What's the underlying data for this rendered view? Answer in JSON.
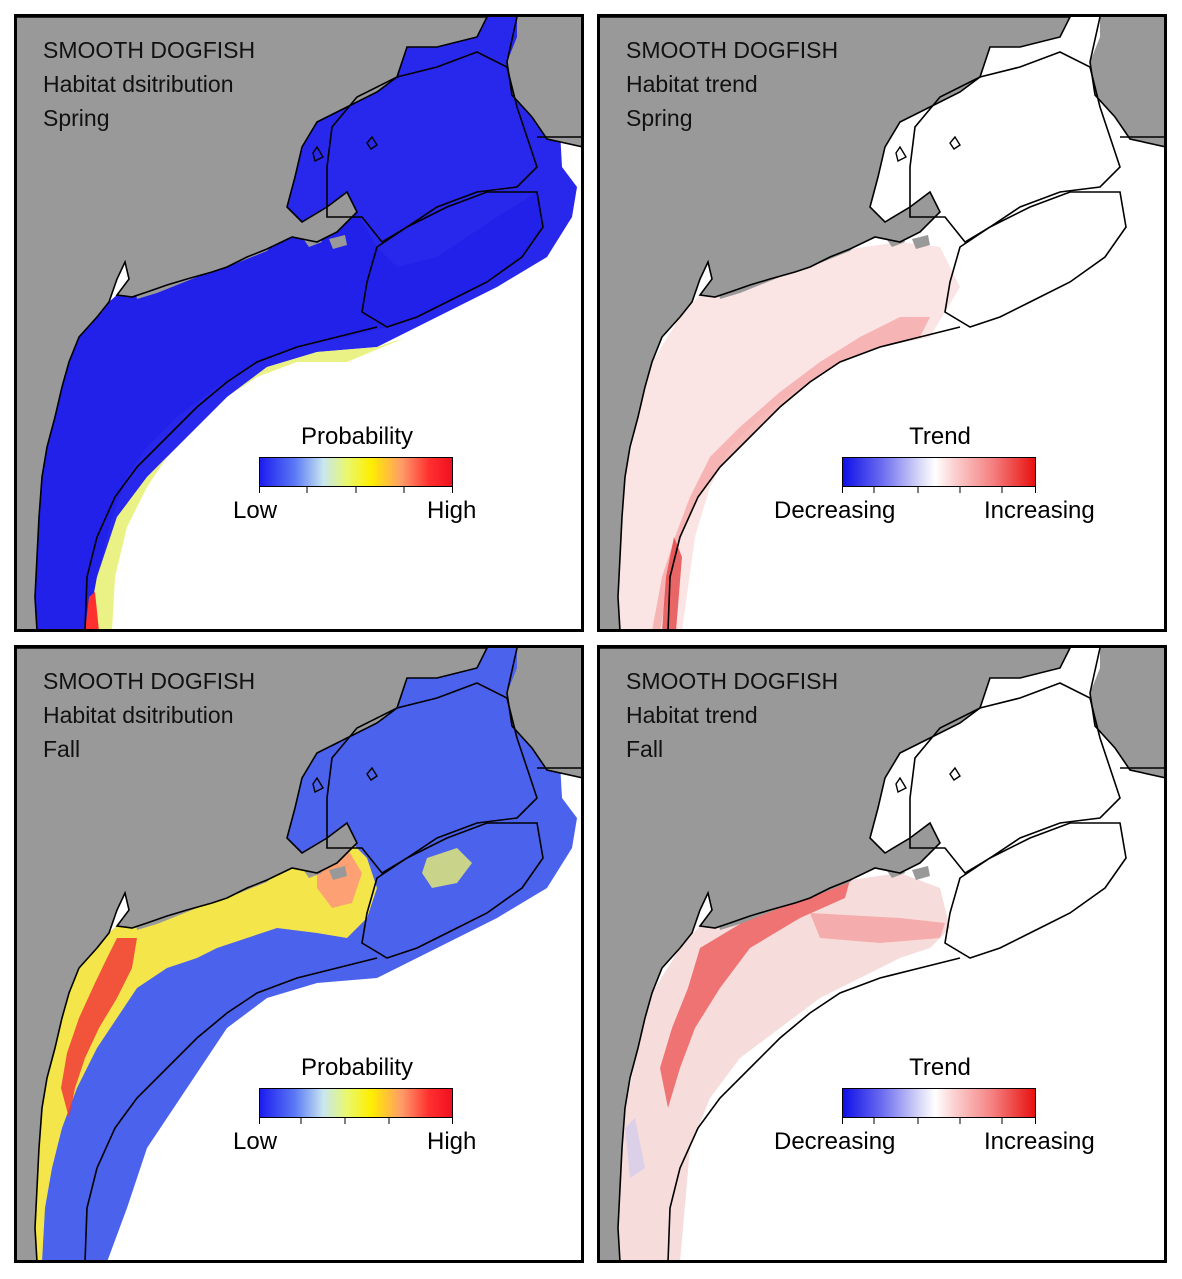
{
  "colors": {
    "land": "#999999",
    "water": "#ffffff",
    "prob_low": "#1c1cf0",
    "prob_mid": "#ffee00",
    "prob_high": "#f01020",
    "trend_dec": "#1010e8",
    "trend_inc": "#e81010"
  },
  "panels": [
    {
      "species": "SMOOTH DOGFISH",
      "metric": "Habitat dsitribution",
      "season": "Spring",
      "legend": {
        "title": "Probability",
        "low": "Low",
        "high": "High"
      }
    },
    {
      "species": "SMOOTH DOGFISH",
      "metric": "Habitat trend",
      "season": "Spring",
      "legend": {
        "title": "Trend",
        "low": "Decreasing",
        "high": "Increasing"
      }
    },
    {
      "species": "SMOOTH DOGFISH",
      "metric": "Habitat dsitribution",
      "season": "Fall",
      "legend": {
        "title": "Probability",
        "low": "Low",
        "high": "High"
      }
    },
    {
      "species": "SMOOTH DOGFISH",
      "metric": "Habitat trend",
      "season": "Fall",
      "legend": {
        "title": "Trend",
        "low": "Decreasing",
        "high": "Increasing"
      }
    }
  ]
}
